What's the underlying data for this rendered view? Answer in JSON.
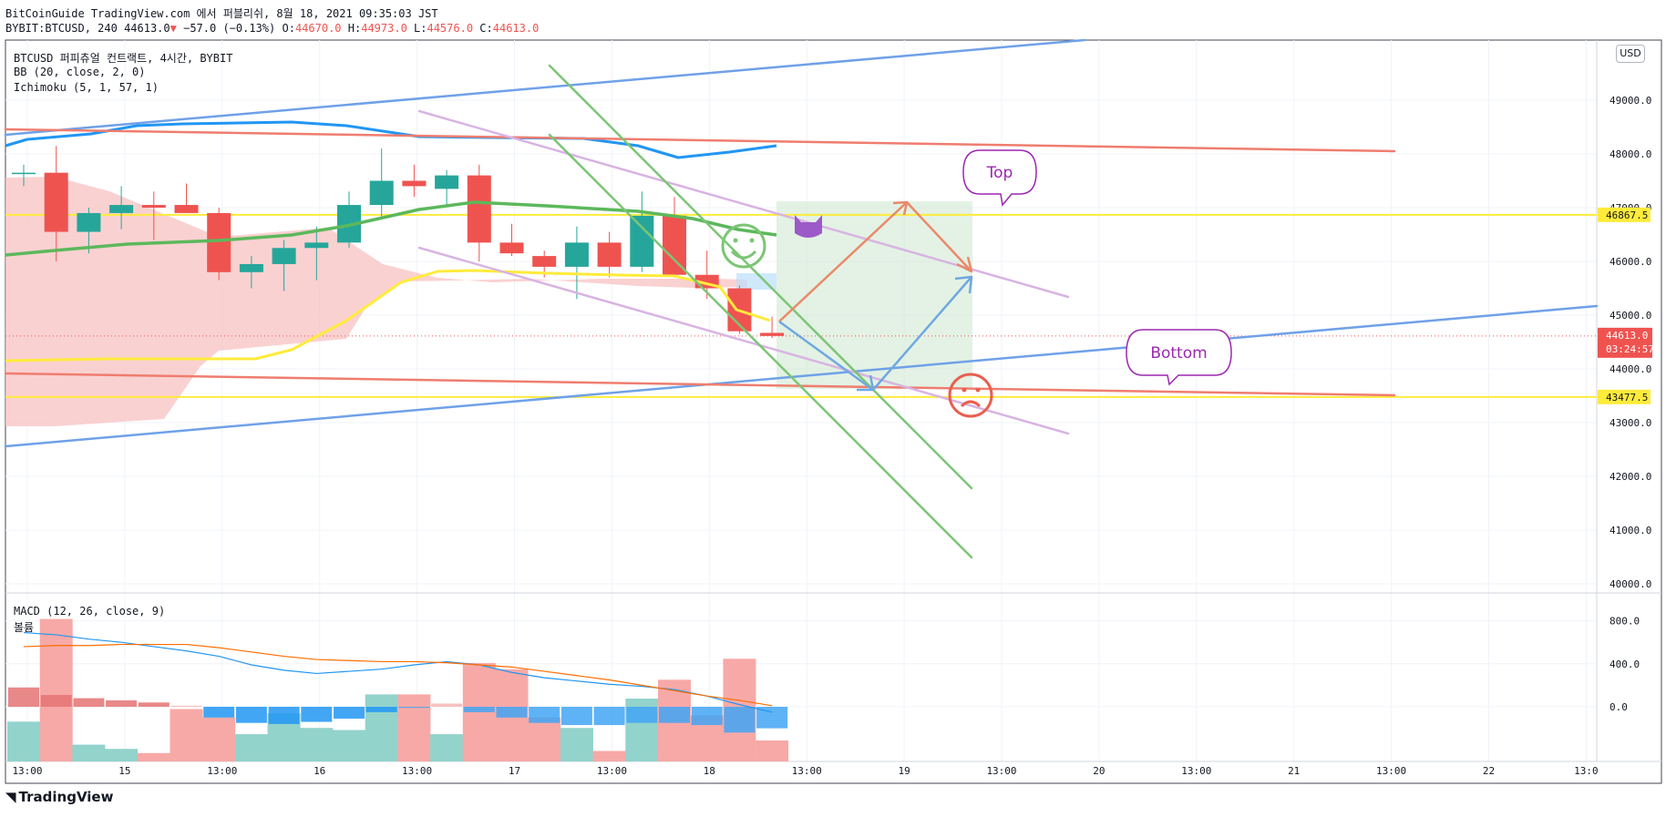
{
  "header": {
    "line1": "BitCoinGuide TradingView.com 에서 퍼블리쉬, 8월 18, 2021 09:35:03 JST",
    "symbol": "BYBIT:BTCUSD, 240",
    "price": "44613.0",
    "change": "−57.0 (−0.13%)",
    "o_label": "O:",
    "o": "44670.0",
    "h_label": "H:",
    "h": "44973.0",
    "l_label": "L:",
    "l": "44576.0",
    "c_label": "C:",
    "c": "44613.0"
  },
  "legend": {
    "title": "BTCUSD 퍼피츄얼 컨트랙트, 4시간, BYBIT",
    "bb": "BB (20, close, 2, 0)",
    "ichimoku": "Ichimoku (5, 1, 57, 1)",
    "macd": "MACD (12, 26, close, 9)",
    "volume": "볼륨"
  },
  "currency": "USD",
  "branding": "TradingView",
  "colors": {
    "bull": "#26a69a",
    "bear": "#ef5350",
    "bb_basis": "#2196f3",
    "yellow_line": "#ffeb3b",
    "cloud": "#f8bdbd",
    "ichimoku_green": "#4caf50"
  },
  "chart_data": [
    {
      "type": "candlestick",
      "title": "BTCUSD 퍼피츄얼 컨트랙트, 4시간, BYBIT",
      "x_tick_labels": [
        "13:00",
        "15",
        "13:00",
        "16",
        "13:00",
        "17",
        "13:00",
        "18",
        "13:00",
        "19",
        "13:00",
        "20",
        "13:00",
        "21",
        "13:00",
        "22",
        "13:0"
      ],
      "y_tick_labels": [
        "40000.0",
        "41000.0",
        "42000.0",
        "43000.0",
        "44000.0",
        "45000.0",
        "46000.0",
        "47000.0",
        "48000.0",
        "49000.0"
      ],
      "ylim": [
        39500,
        50000
      ],
      "candles": [
        {
          "o": 47650,
          "h": 47800,
          "l": 47400,
          "c": 47650
        },
        {
          "o": 47650,
          "h": 48150,
          "l": 46000,
          "c": 46550
        },
        {
          "o": 46550,
          "h": 47000,
          "l": 46150,
          "c": 46900
        },
        {
          "o": 46900,
          "h": 47400,
          "l": 46600,
          "c": 47050
        },
        {
          "o": 47050,
          "h": 47300,
          "l": 46400,
          "c": 47000
        },
        {
          "o": 47050,
          "h": 47450,
          "l": 46900,
          "c": 46900
        },
        {
          "o": 46900,
          "h": 47000,
          "l": 45650,
          "c": 45800
        },
        {
          "o": 45800,
          "h": 46100,
          "l": 45500,
          "c": 45950
        },
        {
          "o": 45950,
          "h": 46400,
          "l": 45450,
          "c": 46250
        },
        {
          "o": 46250,
          "h": 46650,
          "l": 45650,
          "c": 46350
        },
        {
          "o": 46350,
          "h": 47300,
          "l": 46250,
          "c": 47050
        },
        {
          "o": 47050,
          "h": 48100,
          "l": 46800,
          "c": 47500
        },
        {
          "o": 47500,
          "h": 47800,
          "l": 47200,
          "c": 47400
        },
        {
          "o": 47350,
          "h": 47700,
          "l": 47050,
          "c": 47600
        },
        {
          "o": 47600,
          "h": 47800,
          "l": 46000,
          "c": 46350
        },
        {
          "o": 46350,
          "h": 46700,
          "l": 46100,
          "c": 46150
        },
        {
          "o": 46100,
          "h": 46200,
          "l": 45700,
          "c": 45900
        },
        {
          "o": 45900,
          "h": 46650,
          "l": 45300,
          "c": 46350
        },
        {
          "o": 46350,
          "h": 46550,
          "l": 45700,
          "c": 45900
        },
        {
          "o": 45900,
          "h": 47300,
          "l": 45800,
          "c": 46850
        },
        {
          "o": 46850,
          "h": 47200,
          "l": 45700,
          "c": 45750
        },
        {
          "o": 45750,
          "h": 46200,
          "l": 45300,
          "c": 45500
        },
        {
          "o": 45500,
          "h": 45550,
          "l": 44650,
          "c": 44700
        },
        {
          "o": 44670,
          "h": 44973,
          "l": 44576,
          "c": 44613
        }
      ],
      "price_lines": [
        {
          "label": "46867.5",
          "value": 46867.5
        },
        {
          "label": "43477.5",
          "value": 43477.5
        }
      ],
      "last_price": {
        "label": "44613.0",
        "countdown": "03:24:57",
        "value": 44613
      },
      "annotations": [
        "Top",
        "Bottom"
      ]
    },
    {
      "type": "bar",
      "title": "MACD (12, 26, close, 9)",
      "y_tick_labels": [
        "800.0",
        "400.0",
        "0.0"
      ],
      "ylim": [
        -400,
        800
      ],
      "macd_line": [
        690,
        670,
        630,
        600,
        560,
        520,
        470,
        390,
        340,
        310,
        330,
        350,
        390,
        420,
        390,
        320,
        270,
        240,
        210,
        190,
        160,
        100,
        20,
        -50
      ],
      "signal_line": [
        560,
        570,
        570,
        580,
        580,
        580,
        550,
        510,
        470,
        440,
        430,
        420,
        420,
        410,
        390,
        370,
        330,
        290,
        250,
        200,
        150,
        100,
        60,
        10
      ],
      "histogram": [
        180,
        110,
        80,
        60,
        40,
        10,
        -100,
        -150,
        -160,
        -140,
        -110,
        -50,
        -10,
        30,
        -50,
        -100,
        -150,
        -170,
        -170,
        -150,
        -150,
        -170,
        -240,
        -200
      ],
      "volume": [
        190,
        680,
        80,
        60,
        40,
        250,
        210,
        130,
        230,
        160,
        150,
        320,
        320,
        130,
        470,
        440,
        210,
        160,
        50,
        300,
        390,
        220,
        490,
        100
      ]
    }
  ]
}
